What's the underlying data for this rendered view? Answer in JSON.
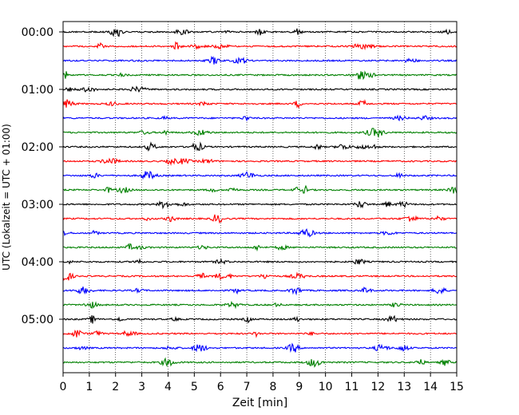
{
  "chart_data": {
    "type": "line",
    "title": "",
    "xlabel": "Zeit  [min]",
    "ylabel": "UTC (Lokalzeit = UTC + 01:00)",
    "xlim": [
      0,
      15
    ],
    "x_ticks": [
      "0",
      "1",
      "2",
      "3",
      "4",
      "5",
      "6",
      "7",
      "8",
      "9",
      "10",
      "11",
      "12",
      "13",
      "14",
      "15"
    ],
    "y_tick_labels": [
      "00:00",
      "01:00",
      "02:00",
      "03:00",
      "04:00",
      "05:00"
    ],
    "y_tick_hours": [
      0,
      1,
      2,
      3,
      4,
      5
    ],
    "trace_interval_min": 15,
    "trace_count": 24,
    "trace_colors": [
      "#000000",
      "#ff0000",
      "#0000ff",
      "#008000"
    ],
    "grid": "vertical-dotted",
    "traces": [
      {
        "start": "00:00"
      },
      {
        "start": "00:15"
      },
      {
        "start": "00:30"
      },
      {
        "start": "00:45"
      },
      {
        "start": "01:00"
      },
      {
        "start": "01:15"
      },
      {
        "start": "01:30"
      },
      {
        "start": "01:45"
      },
      {
        "start": "02:00"
      },
      {
        "start": "02:15"
      },
      {
        "start": "02:30"
      },
      {
        "start": "02:45"
      },
      {
        "start": "03:00"
      },
      {
        "start": "03:15"
      },
      {
        "start": "03:30"
      },
      {
        "start": "03:45"
      },
      {
        "start": "04:00"
      },
      {
        "start": "04:15"
      },
      {
        "start": "04:30"
      },
      {
        "start": "04:45"
      },
      {
        "start": "05:00"
      },
      {
        "start": "05:15"
      },
      {
        "start": "05:30"
      },
      {
        "start": "05:45"
      }
    ]
  }
}
